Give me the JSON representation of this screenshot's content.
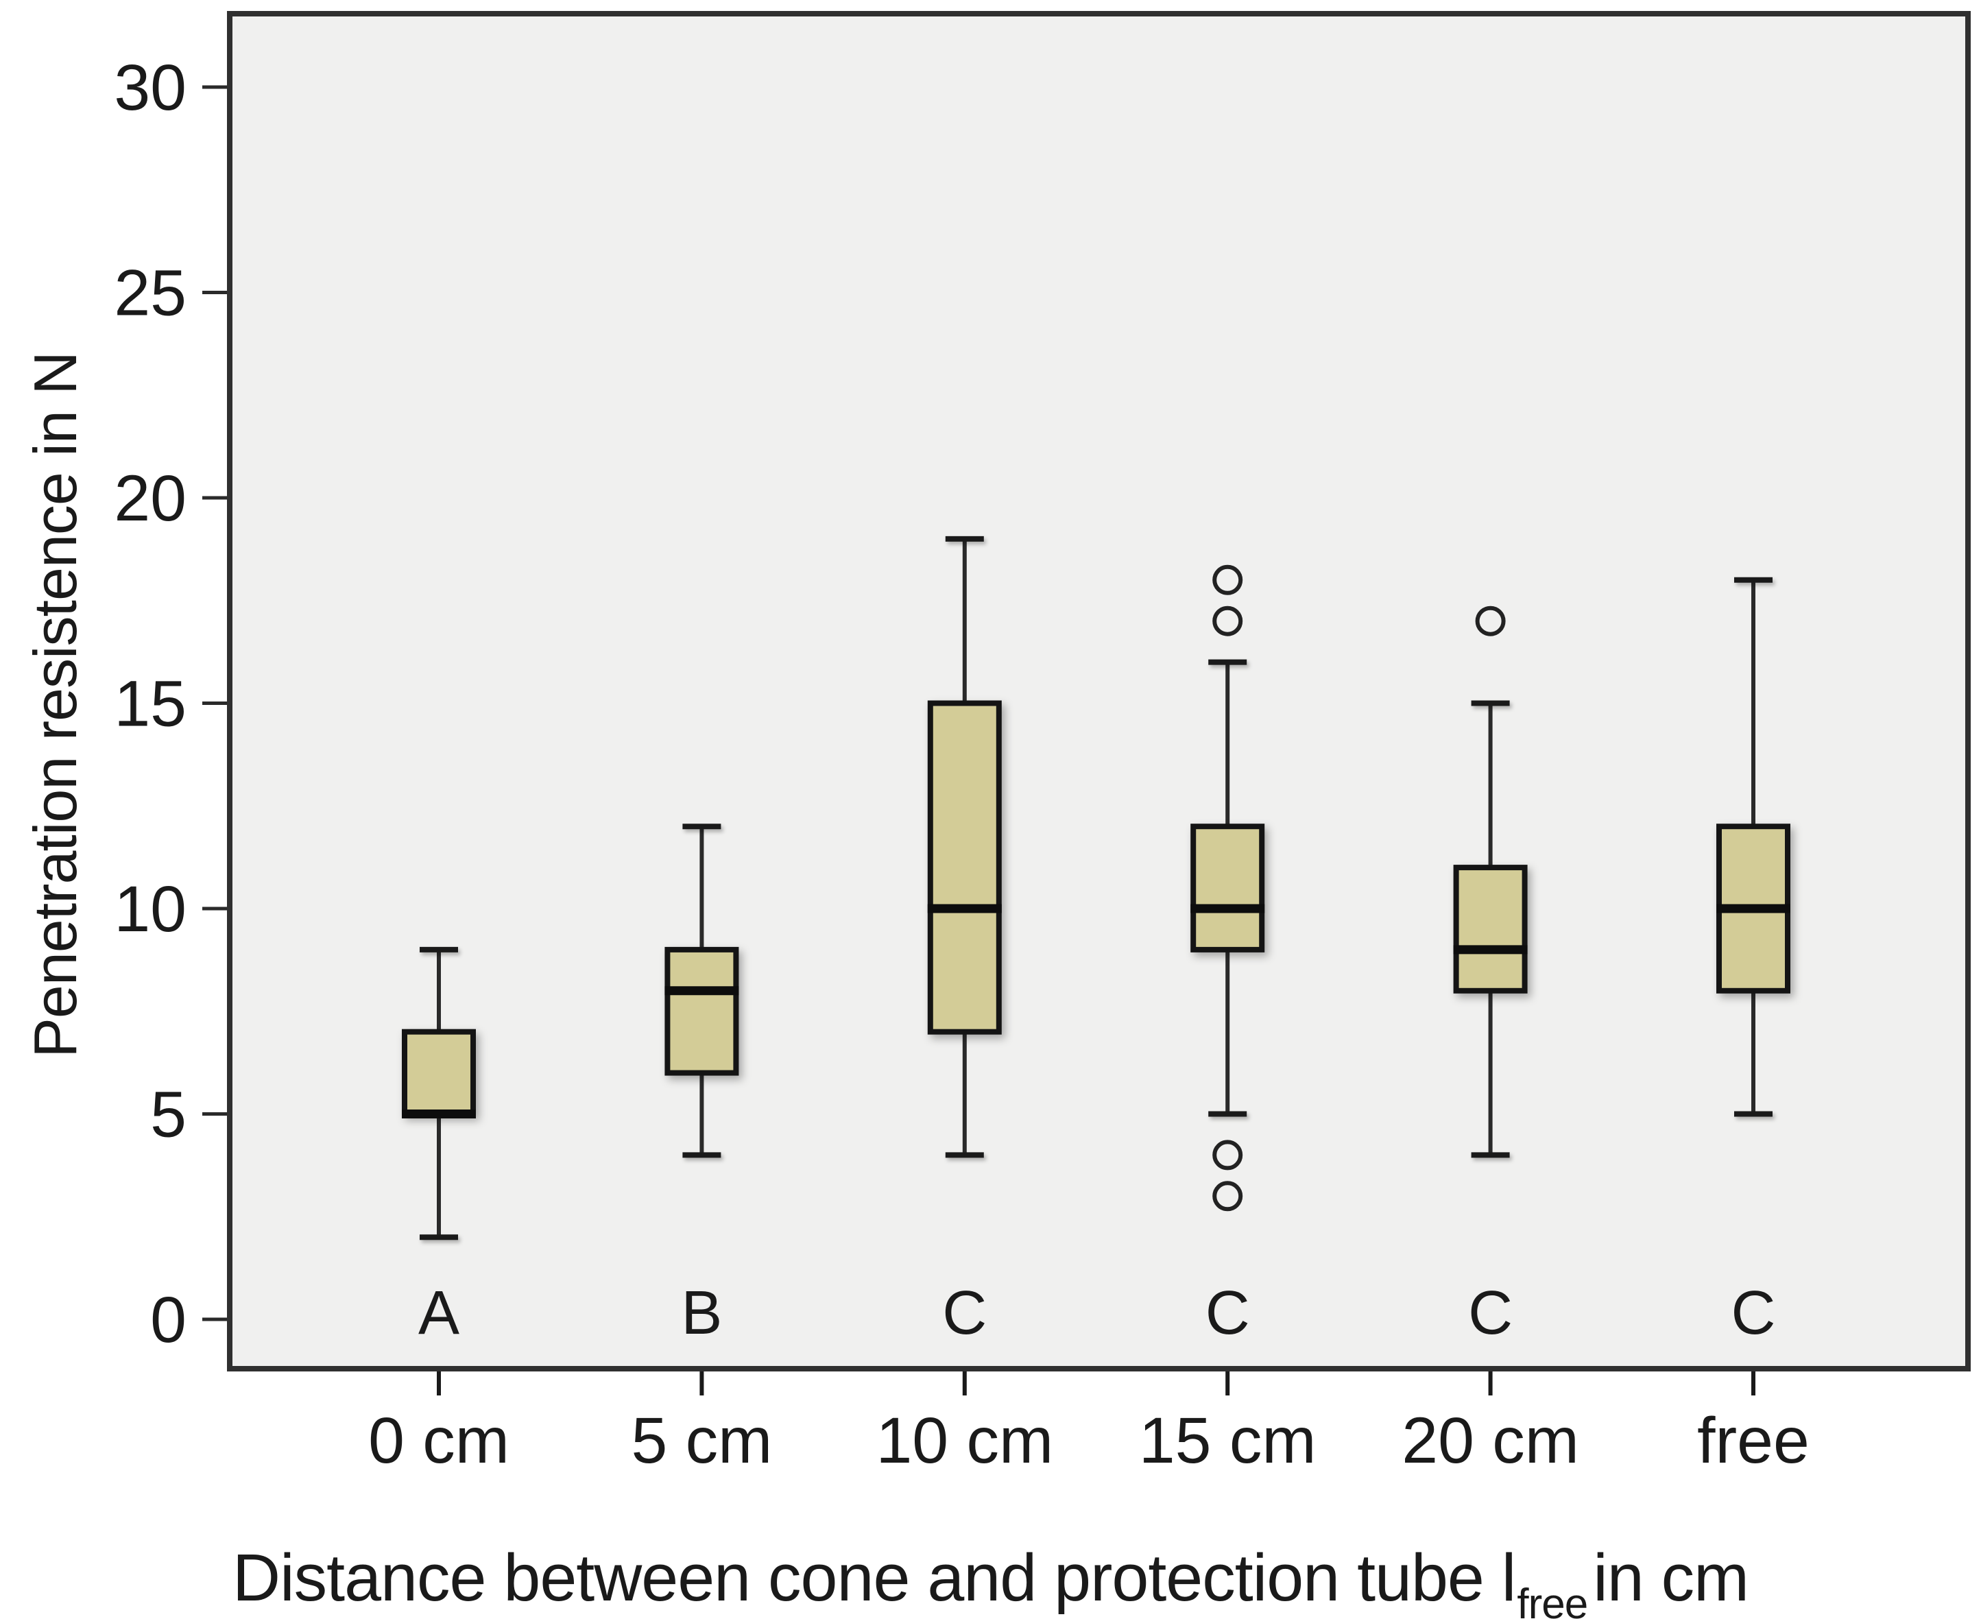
{
  "figure": {
    "y_axis": {
      "title": "Penetration resistence in N"
    },
    "x_axis": {
      "title_main": "Distance between cone and protection tube l",
      "title_sub": "free",
      "title_end": "in cm"
    }
  },
  "chart_data": {
    "type": "boxplot",
    "title": "",
    "xlabel": "Distance between cone and protection tube l_free in cm",
    "ylabel": "Penetration resistence in N",
    "ylim": [
      0,
      31
    ],
    "yticks": [
      0,
      5,
      10,
      15,
      20,
      25,
      30
    ],
    "grid": false,
    "categories": [
      "0 cm",
      "5 cm",
      "10 cm",
      "15 cm",
      "20 cm",
      "free"
    ],
    "group_labels": [
      "A",
      "B",
      "C",
      "C",
      "C",
      "C"
    ],
    "series": [
      {
        "category": "0 cm",
        "letter": "A",
        "whisker_low": 2,
        "q1": 5,
        "median": 5,
        "q3": 7,
        "whisker_high": 9,
        "outliers": []
      },
      {
        "category": "5 cm",
        "letter": "B",
        "whisker_low": 4,
        "q1": 6,
        "median": 8,
        "q3": 9,
        "whisker_high": 12,
        "outliers": []
      },
      {
        "category": "10 cm",
        "letter": "C",
        "whisker_low": 4,
        "q1": 7,
        "median": 10,
        "q3": 15,
        "whisker_high": 19,
        "outliers": []
      },
      {
        "category": "15 cm",
        "letter": "C",
        "whisker_low": 5,
        "q1": 9,
        "median": 10,
        "q3": 12,
        "whisker_high": 16,
        "outliers": [
          18,
          17,
          4,
          3
        ]
      },
      {
        "category": "20 cm",
        "letter": "C",
        "whisker_low": 4,
        "q1": 8,
        "median": 9,
        "q3": 11,
        "whisker_high": 15,
        "outliers": [
          17
        ]
      },
      {
        "category": "free",
        "letter": "C",
        "whisker_low": 5,
        "q1": 8,
        "median": 10,
        "q3": 12,
        "whisker_high": 18,
        "outliers": []
      }
    ],
    "colors": {
      "box_fill": "#d3cc97",
      "box_border": "#141414",
      "median": "#0d0d0d",
      "whisker": "#2a2a2a",
      "outlier_stroke": "#222222",
      "plot_bg": "#f0f0ef",
      "frame": "#303030",
      "text": "#1a1a1a"
    }
  }
}
